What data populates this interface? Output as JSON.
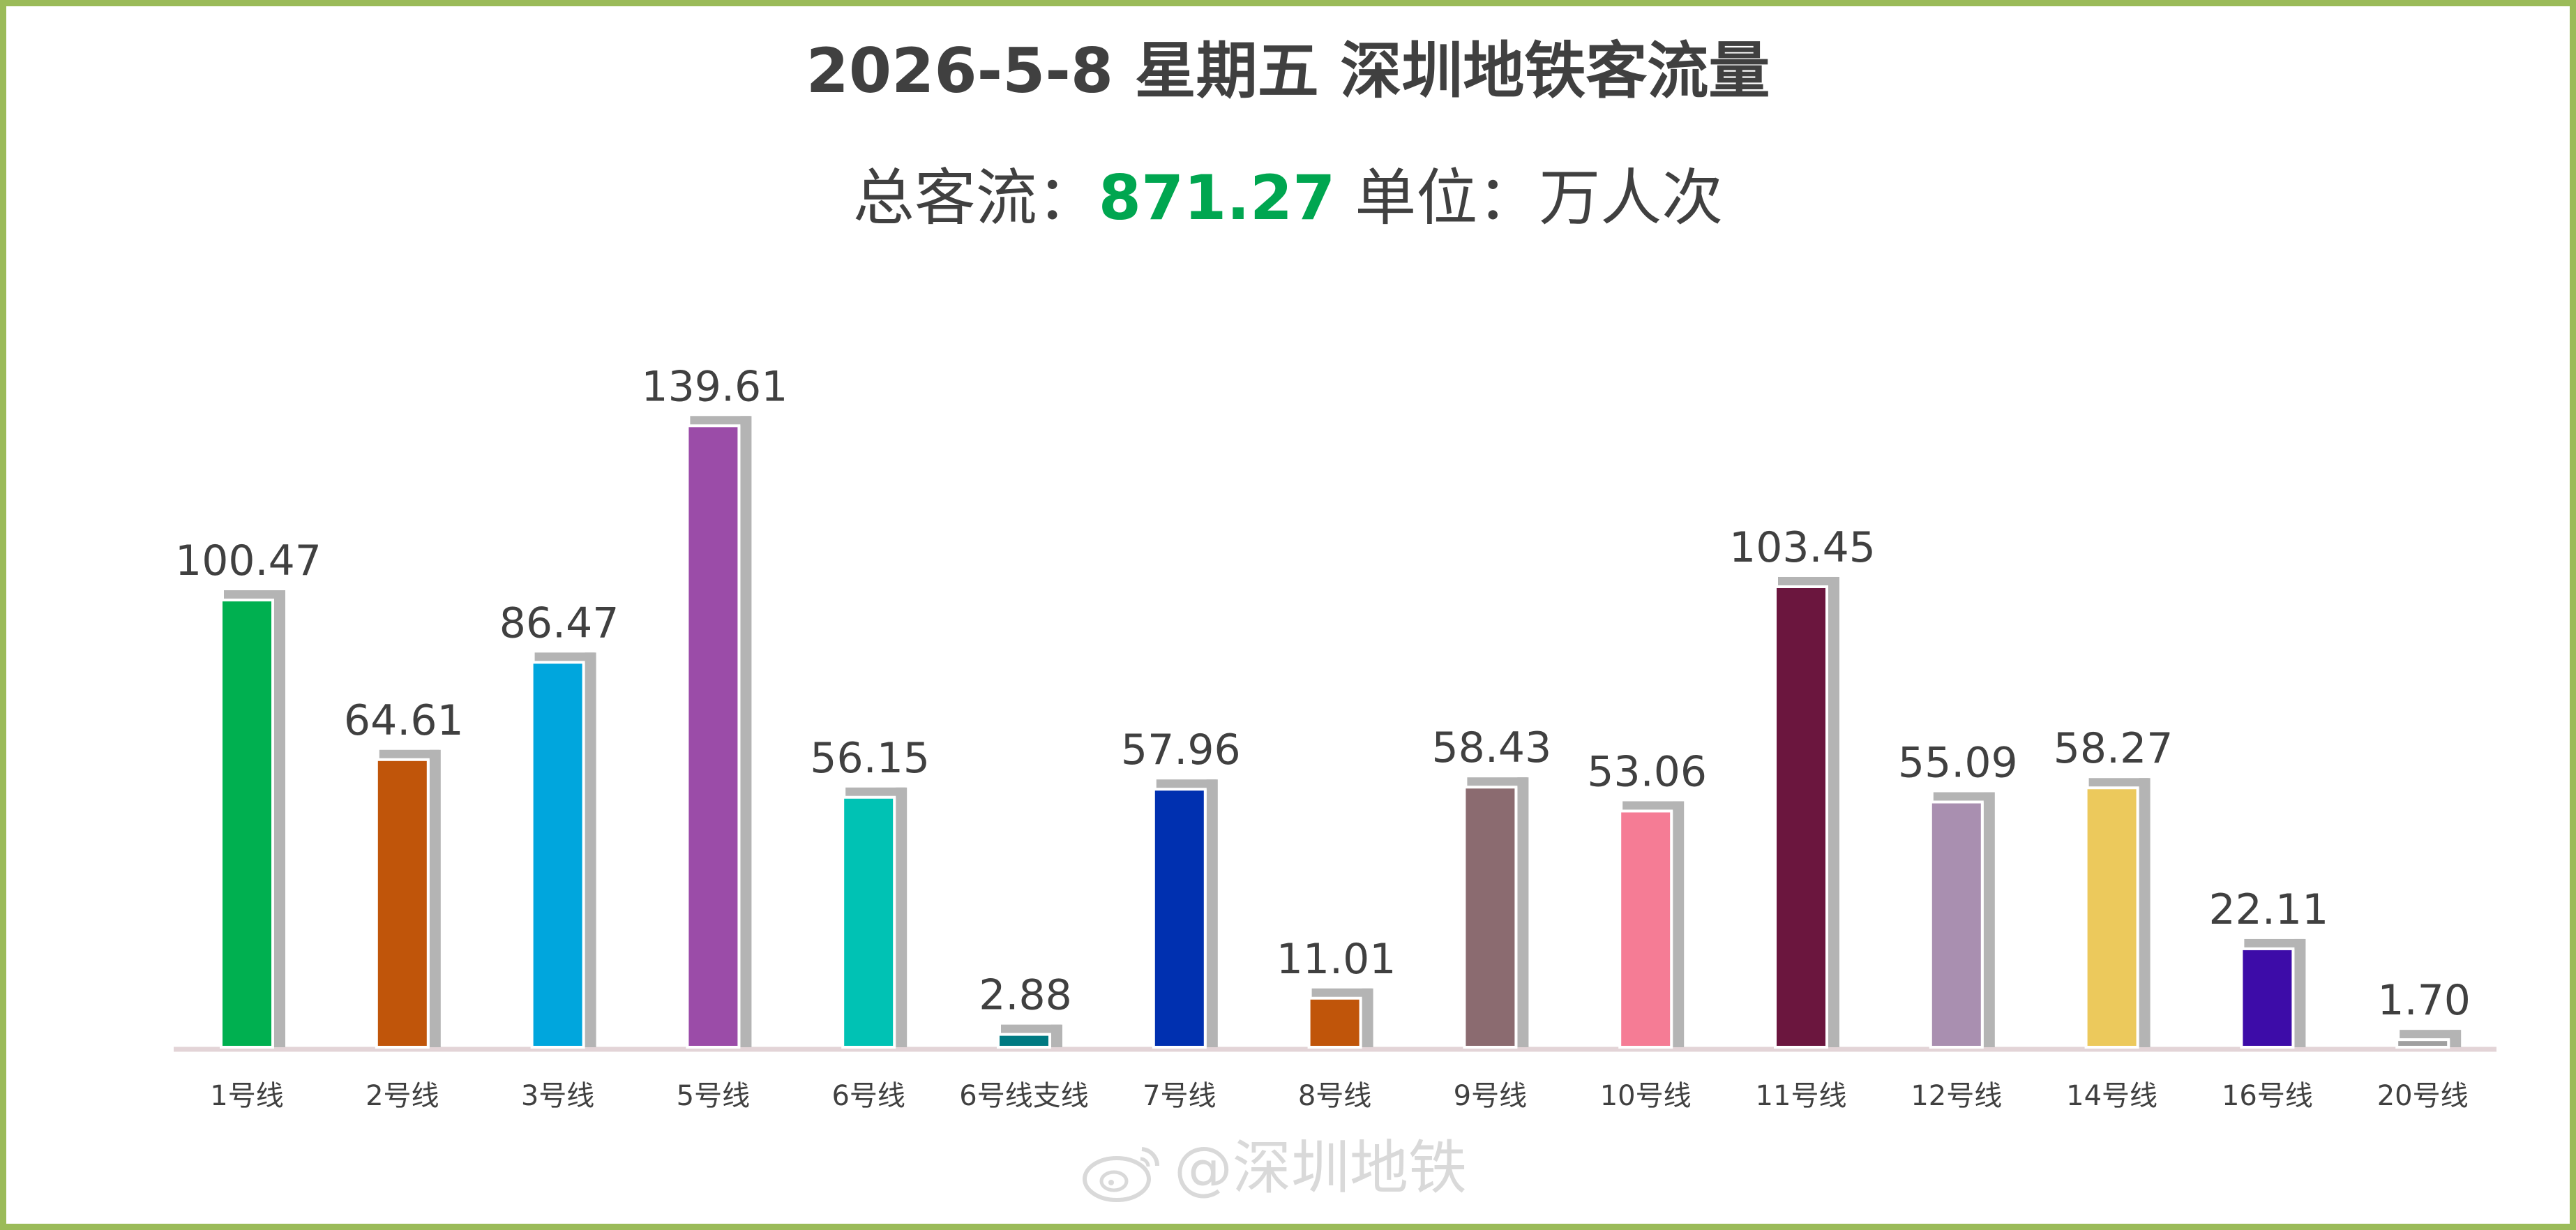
{
  "title": "2026-5-8 星期五 深圳地铁客流量",
  "subtitle": {
    "label": "总客流：",
    "total": "871.27",
    "unit": " 单位：万人次"
  },
  "watermark": "@深圳地铁",
  "colors": {
    "border": "#9bbb59",
    "total": "#00a650",
    "text": "#404040",
    "shadow": "#b4b4b4",
    "baseline": "#e3d4d7"
  },
  "chart_data": {
    "type": "bar",
    "categories": [
      "1号线",
      "2号线",
      "3号线",
      "5号线",
      "6号线",
      "6号线支线",
      "7号线",
      "8号线",
      "9号线",
      "10号线",
      "11号线",
      "12号线",
      "14号线",
      "16号线",
      "20号线"
    ],
    "values": [
      100.47,
      64.61,
      86.47,
      139.61,
      56.15,
      2.88,
      57.96,
      11.01,
      58.43,
      53.06,
      103.45,
      55.09,
      58.27,
      22.11,
      1.7
    ],
    "value_labels": [
      "100.47",
      "64.61",
      "86.47",
      "139.61",
      "56.15",
      "2.88",
      "57.96",
      "11.01",
      "58.43",
      "53.06",
      "103.45",
      "55.09",
      "58.27",
      "22.11",
      "1.70"
    ],
    "colors": [
      "#00b050",
      "#c0550a",
      "#00a6dd",
      "#9b4ca8",
      "#00c2b4",
      "#007a82",
      "#0030b0",
      "#c0550a",
      "#8b6b70",
      "#f57c95",
      "#6b163e",
      "#a98fb0",
      "#ecc95c",
      "#3d0ca8",
      "#a0a0a0"
    ],
    "ylim": [
      0,
      150
    ],
    "grid": false,
    "legend": "none",
    "xlabel": "",
    "ylabel": ""
  }
}
